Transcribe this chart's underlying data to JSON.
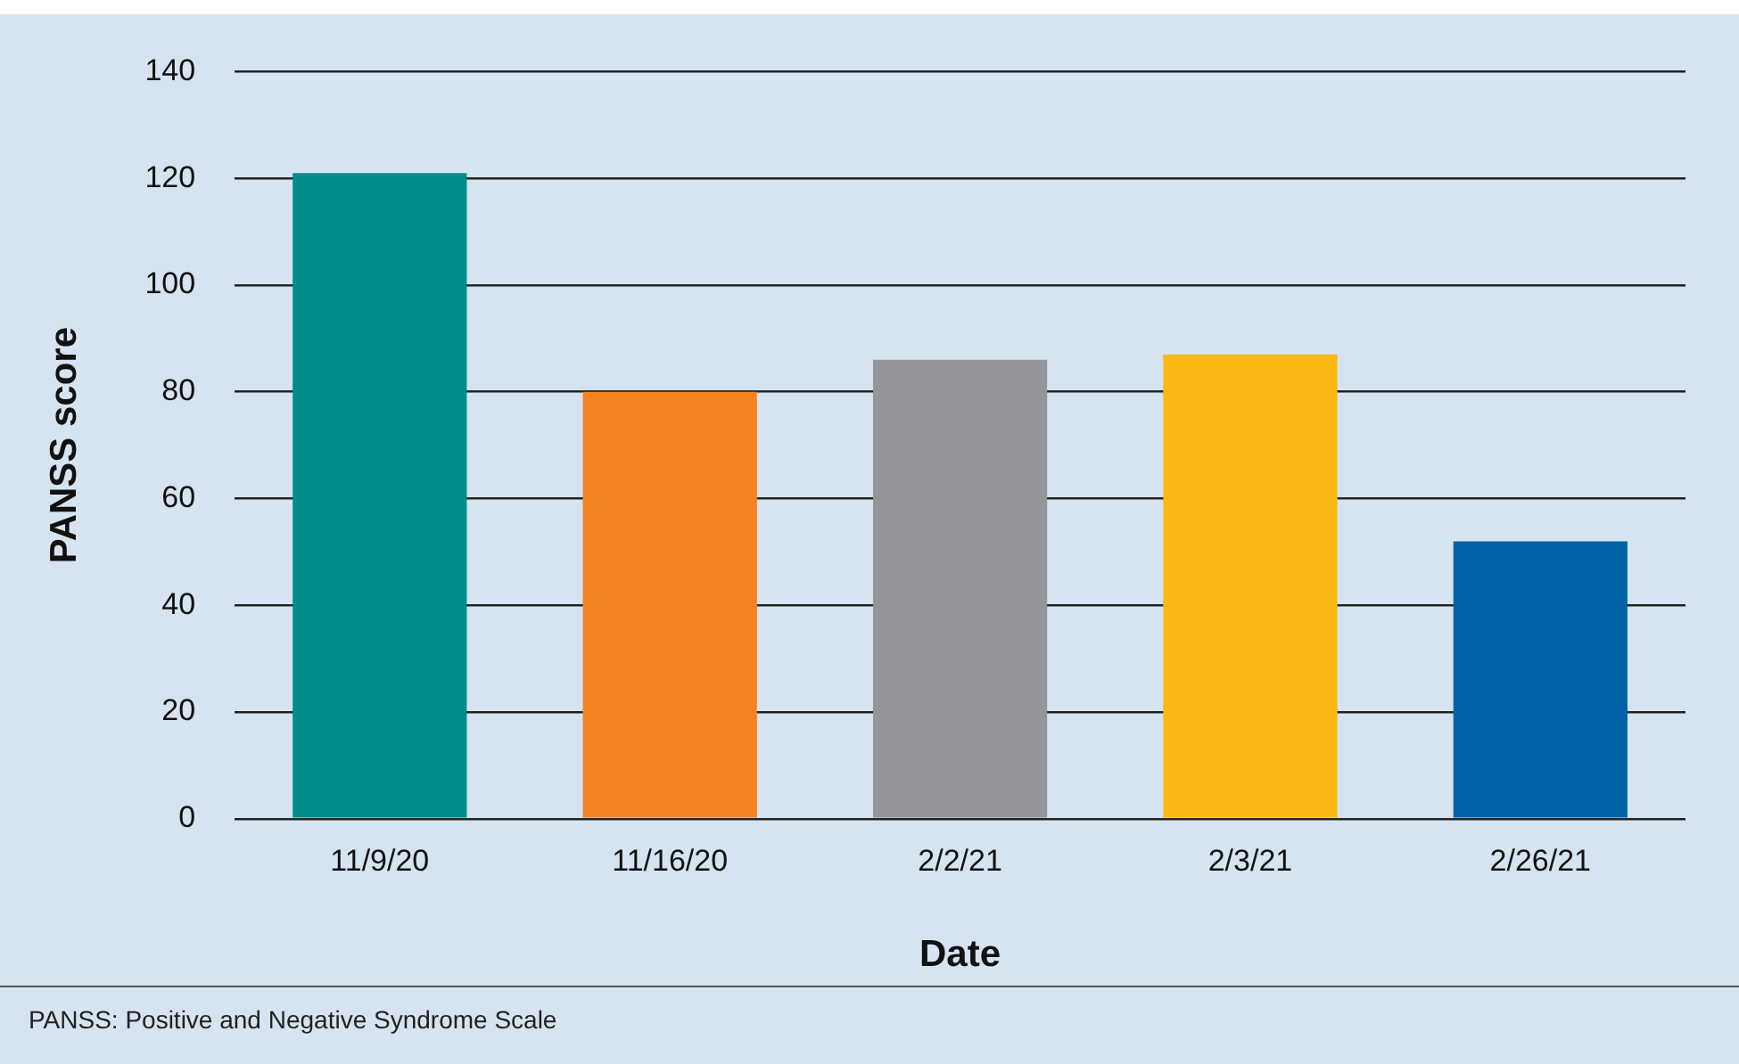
{
  "chart_data": {
    "type": "bar",
    "xlabel": "Date",
    "ylabel": "PANSS score",
    "categories": [
      "11/9/20",
      "11/16/20",
      "2/2/21",
      "2/3/21",
      "2/26/21"
    ],
    "values": [
      121,
      80,
      86,
      87,
      52
    ],
    "colors": [
      "#008d8b",
      "#f48322",
      "#959699",
      "#fcb813",
      "#0063a6"
    ],
    "ylim": [
      0,
      140
    ],
    "yticks": [
      0,
      20,
      40,
      60,
      80,
      100,
      120,
      140
    ],
    "grid": "y",
    "legend": false,
    "annotations": [
      "PANSS: Positive and Negative Syndrome Scale"
    ]
  }
}
